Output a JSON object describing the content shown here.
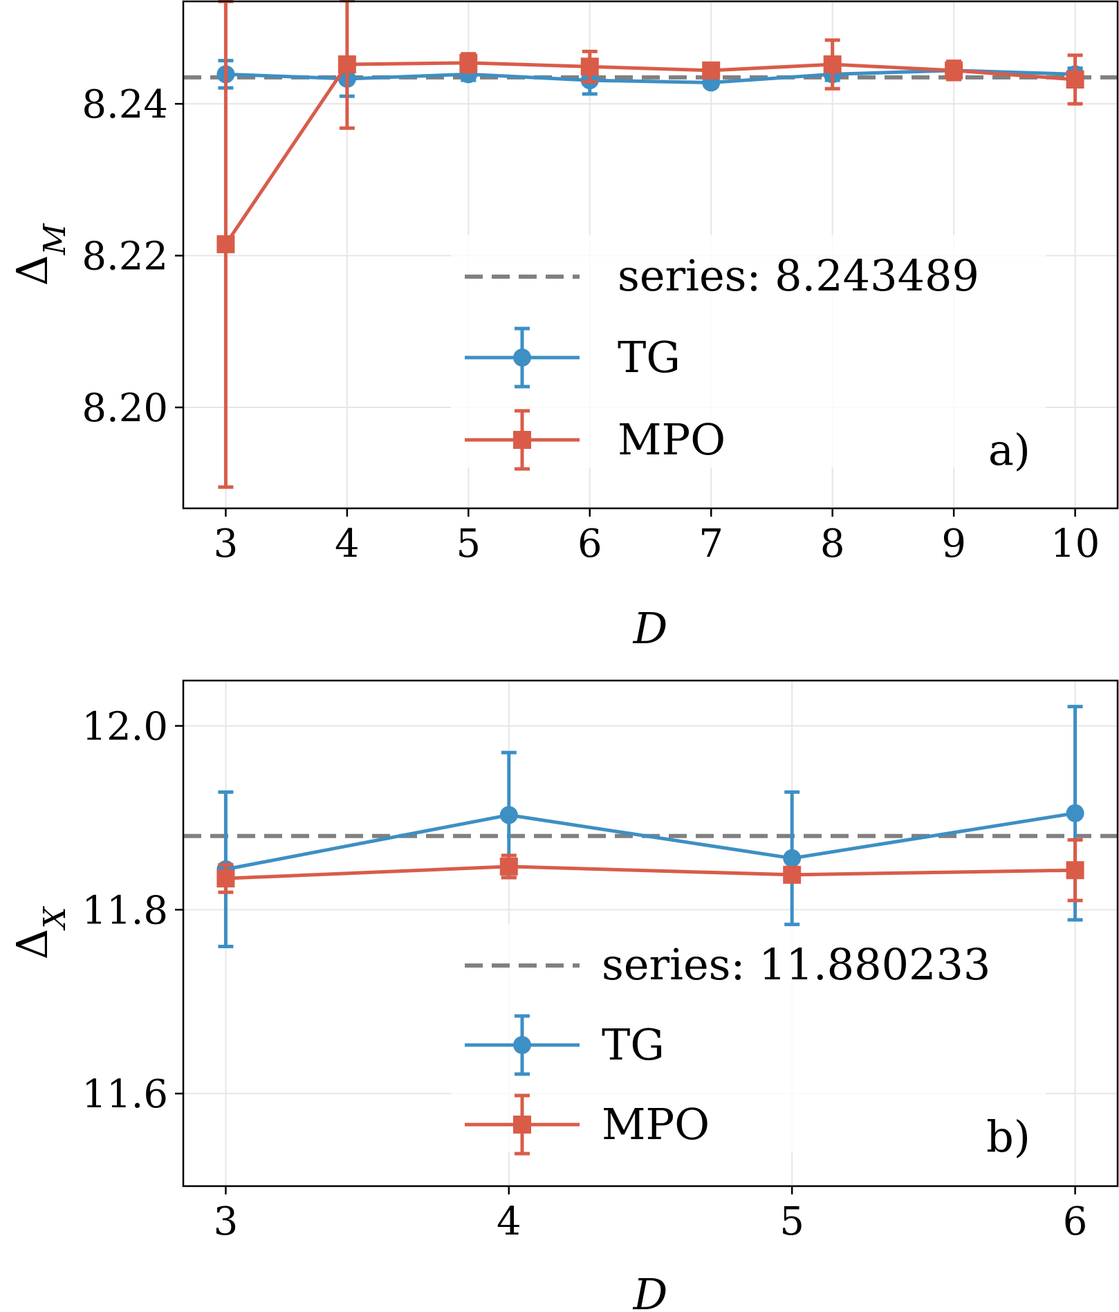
{
  "colors": {
    "TG": "#3d8fc4",
    "MPO": "#d95c49",
    "reference": "#808080"
  },
  "chart_data": [
    {
      "type": "line",
      "panel": "a)",
      "xlabel": "D",
      "ylabel_main": "Δ",
      "ylabel_sub": "M",
      "xlim": [
        2.65,
        10.35
      ],
      "ylim": [
        8.1867,
        8.2535
      ],
      "x_ticks": [
        3,
        4,
        5,
        6,
        7,
        8,
        9,
        10
      ],
      "y_ticks": [
        8.2,
        8.22,
        8.24
      ],
      "y_tick_labels": [
        "8.20",
        "8.22",
        "8.24"
      ],
      "grid": true,
      "legend_position": "lower-right",
      "reference": {
        "label": "series:  8.243489",
        "value": 8.243489
      },
      "series": [
        {
          "name": "TG",
          "marker": "circle",
          "x": [
            3,
            4,
            5,
            6,
            7,
            8,
            9,
            10
          ],
          "y": [
            8.2439,
            8.2433,
            8.2439,
            8.2431,
            8.2428,
            8.2439,
            8.2444,
            8.2439
          ],
          "err": [
            0.0018,
            0.0023,
            0.0008,
            0.0018,
            0.0005,
            0.0008,
            0.0008,
            0.0008
          ]
        },
        {
          "name": "MPO",
          "marker": "square",
          "x": [
            3,
            4,
            5,
            6,
            7,
            8,
            9,
            10
          ],
          "y": [
            8.2215,
            8.2452,
            8.2454,
            8.2449,
            8.2444,
            8.2452,
            8.2444,
            8.2432
          ],
          "err": [
            0.032,
            0.0084,
            0.0012,
            0.002,
            0.0008,
            0.0032,
            0.0012,
            0.0032
          ]
        }
      ]
    },
    {
      "type": "line",
      "panel": "b)",
      "xlabel": "D",
      "ylabel_main": "Δ",
      "ylabel_sub": "X",
      "xlim": [
        2.85,
        6.15
      ],
      "ylim": [
        11.4993,
        12.0493
      ],
      "x_ticks": [
        3,
        4,
        5,
        6
      ],
      "y_ticks": [
        11.6,
        11.8,
        12.0
      ],
      "y_tick_labels": [
        "11.6",
        "11.8",
        "12.0"
      ],
      "grid": true,
      "legend_position": "lower-right",
      "reference": {
        "label": "series:  11.880233",
        "value": 11.880233
      },
      "series": [
        {
          "name": "TG",
          "marker": "circle",
          "x": [
            3,
            4,
            5,
            6
          ],
          "y": [
            11.844,
            11.903,
            11.856,
            11.905
          ],
          "err": [
            0.084,
            0.068,
            0.072,
            0.116
          ]
        },
        {
          "name": "MPO",
          "marker": "square",
          "x": [
            3,
            4,
            5,
            6
          ],
          "y": [
            11.834,
            11.847,
            11.838,
            11.843
          ],
          "err": [
            0.015,
            0.012,
            0.006,
            0.033
          ]
        }
      ]
    }
  ]
}
